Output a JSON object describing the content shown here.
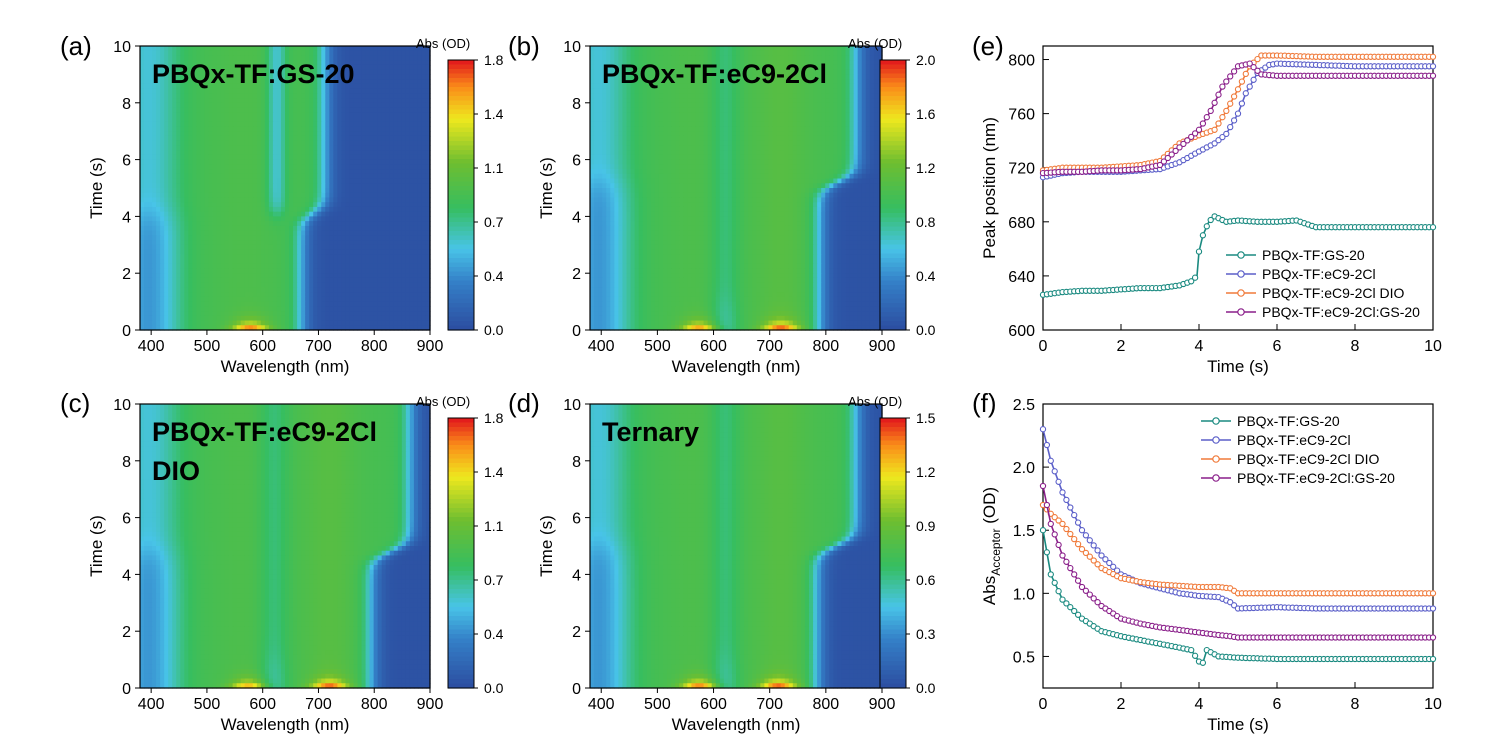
{
  "chart_data": [
    {
      "panel": "(a)",
      "type": "heatmap",
      "title": "PBQx-TF:GS-20",
      "xlabel": "Wavelength (nm)",
      "ylabel": "Time (s)",
      "xlim": [
        380,
        900
      ],
      "ylim": [
        0,
        10
      ],
      "xticks": [
        "400",
        "500",
        "600",
        "700",
        "800",
        "900"
      ],
      "yticks": [
        "0",
        "2",
        "4",
        "6",
        "8",
        "10"
      ],
      "colorbar": {
        "label": "Abs (OD)",
        "ticks": [
          "0.0",
          "0.4",
          "0.7",
          "1.1",
          "1.4",
          "1.8"
        ],
        "max": 1.8
      },
      "transition_time_s": 4.1,
      "edge_nm_before": 670,
      "edge_nm_after": 712,
      "peaks_at_t0": [
        {
          "nm": 578,
          "abs": 1.8
        }
      ]
    },
    {
      "panel": "(b)",
      "type": "heatmap",
      "title": "PBQx-TF:eC9-2Cl",
      "xlabel": "Wavelength (nm)",
      "ylabel": "Time (s)",
      "xlim": [
        380,
        900
      ],
      "ylim": [
        0,
        10
      ],
      "xticks": [
        "400",
        "500",
        "600",
        "700",
        "800",
        "900"
      ],
      "yticks": [
        "0",
        "2",
        "4",
        "6",
        "8",
        "10"
      ],
      "colorbar": {
        "label": "Abs (OD)",
        "ticks": [
          "0.0",
          "0.4",
          "0.8",
          "1.2",
          "1.6",
          "2.0"
        ],
        "max": 2.0
      },
      "transition_time_s": 5.2,
      "edge_nm_before": 790,
      "edge_nm_after": 855,
      "peaks_at_t0": [
        {
          "nm": 575,
          "abs": 1.8
        },
        {
          "nm": 720,
          "abs": 2.0
        }
      ]
    },
    {
      "panel": "(c)",
      "type": "heatmap",
      "title": "PBQx-TF:eC9-2Cl",
      "title_line2": "DIO",
      "xlabel": "Wavelength (nm)",
      "ylabel": "Time (s)",
      "xlim": [
        380,
        900
      ],
      "ylim": [
        0,
        10
      ],
      "xticks": [
        "400",
        "500",
        "600",
        "700",
        "800",
        "900"
      ],
      "yticks": [
        "0",
        "2",
        "4",
        "6",
        "8",
        "10"
      ],
      "colorbar": {
        "label": "Abs (OD)",
        "ticks": [
          "0.0",
          "0.4",
          "0.7",
          "1.1",
          "1.4",
          "1.8"
        ],
        "max": 1.8
      },
      "transition_time_s": 4.8,
      "edge_nm_before": 795,
      "edge_nm_after": 865,
      "peaks_at_t0": [
        {
          "nm": 575,
          "abs": 1.5
        },
        {
          "nm": 720,
          "abs": 1.8
        }
      ]
    },
    {
      "panel": "(d)",
      "type": "heatmap",
      "title": "Ternary",
      "xlabel": "Wavelength (nm)",
      "ylabel": "Time (s)",
      "xlim": [
        380,
        900
      ],
      "ylim": [
        0,
        10
      ],
      "xticks": [
        "400",
        "500",
        "600",
        "700",
        "800",
        "900"
      ],
      "yticks": [
        "0",
        "2",
        "4",
        "6",
        "8",
        "10"
      ],
      "colorbar": {
        "label": "Abs (OD)",
        "ticks": [
          "0.0",
          "0.3",
          "0.6",
          "0.9",
          "1.2",
          "1.5"
        ],
        "max": 1.5
      },
      "transition_time_s": 5.0,
      "edge_nm_before": 785,
      "edge_nm_after": 855,
      "peaks_at_t0": [
        {
          "nm": 575,
          "abs": 1.5
        },
        {
          "nm": 715,
          "abs": 1.5
        }
      ]
    },
    {
      "panel": "(e)",
      "type": "line",
      "xlabel": "Time (s)",
      "ylabel": "Peak position (nm)",
      "xlim": [
        0,
        10
      ],
      "ylim": [
        600,
        810
      ],
      "xticks": [
        0,
        2,
        4,
        6,
        8,
        10
      ],
      "yticks": [
        600,
        640,
        680,
        720,
        760,
        800
      ],
      "legend_position": "lower-right",
      "series": [
        {
          "name": "PBQx-TF:GS-20",
          "color": "#1a8a80",
          "points": [
            [
              0,
              626
            ],
            [
              0.5,
              628
            ],
            [
              1,
              629
            ],
            [
              1.5,
              629
            ],
            [
              2,
              630
            ],
            [
              2.5,
              631
            ],
            [
              3,
              631
            ],
            [
              3.5,
              633
            ],
            [
              3.8,
              636
            ],
            [
              3.95,
              640
            ],
            [
              4.0,
              658
            ],
            [
              4.1,
              670
            ],
            [
              4.25,
              680
            ],
            [
              4.4,
              684
            ],
            [
              4.7,
              680
            ],
            [
              5,
              681
            ],
            [
              5.5,
              680
            ],
            [
              6,
              680
            ],
            [
              6.5,
              681
            ],
            [
              7,
              676
            ],
            [
              8,
              676
            ],
            [
              9,
              676
            ],
            [
              10,
              676
            ]
          ]
        },
        {
          "name": "PBQx-TF:eC9-2Cl",
          "color": "#5b5fc9",
          "points": [
            [
              0,
              713
            ],
            [
              0.5,
              716
            ],
            [
              1,
              717
            ],
            [
              1.5,
              717
            ],
            [
              2,
              717
            ],
            [
              2.5,
              718
            ],
            [
              3,
              719
            ],
            [
              3.5,
              724
            ],
            [
              4,
              732
            ],
            [
              4.4,
              738
            ],
            [
              4.7,
              745
            ],
            [
              5,
              760
            ],
            [
              5.2,
              775
            ],
            [
              5.5,
              790
            ],
            [
              5.8,
              796
            ],
            [
              6,
              797
            ],
            [
              7,
              796
            ],
            [
              8,
              795
            ],
            [
              9,
              795
            ],
            [
              10,
              795
            ]
          ]
        },
        {
          "name": "PBQx-TF:eC9-2Cl DIO",
          "color": "#f07a3a",
          "points": [
            [
              0,
              718
            ],
            [
              0.5,
              720
            ],
            [
              1,
              720
            ],
            [
              1.5,
              720
            ],
            [
              2,
              721
            ],
            [
              2.5,
              722
            ],
            [
              3,
              725
            ],
            [
              3.5,
              738
            ],
            [
              4,
              744
            ],
            [
              4.4,
              748
            ],
            [
              4.7,
              762
            ],
            [
              5,
              778
            ],
            [
              5.3,
              795
            ],
            [
              5.6,
              803
            ],
            [
              6,
              803
            ],
            [
              7,
              802
            ],
            [
              8,
              802
            ],
            [
              9,
              802
            ],
            [
              10,
              802
            ]
          ]
        },
        {
          "name": "PBQx-TF:eC9-2Cl:GS-20",
          "color": "#8a1f8a",
          "points": [
            [
              0,
              716
            ],
            [
              0.5,
              717
            ],
            [
              1,
              717
            ],
            [
              1.5,
              718
            ],
            [
              2,
              718
            ],
            [
              2.5,
              719
            ],
            [
              3,
              722
            ],
            [
              3.5,
              735
            ],
            [
              4,
              748
            ],
            [
              4.3,
              762
            ],
            [
              4.6,
              780
            ],
            [
              5,
              795
            ],
            [
              5.3,
              797
            ],
            [
              5.6,
              789
            ],
            [
              6,
              788
            ],
            [
              7,
              788
            ],
            [
              8,
              788
            ],
            [
              9,
              788
            ],
            [
              10,
              788
            ]
          ]
        }
      ]
    },
    {
      "panel": "(f)",
      "type": "line",
      "xlabel": "Time (s)",
      "ylabel": "Abs",
      "ylabel_subscript": "Acceptor",
      "ylabel_unit": " (OD)",
      "xlim": [
        0,
        10
      ],
      "ylim": [
        0.25,
        2.5
      ],
      "xticks": [
        0,
        2,
        4,
        6,
        8,
        10
      ],
      "yticks": [
        "0.5",
        "1.0",
        "1.5",
        "2.0",
        "2.5"
      ],
      "legend_position": "top-right",
      "series": [
        {
          "name": "PBQx-TF:GS-20",
          "color": "#1a8a80",
          "points": [
            [
              0,
              1.5
            ],
            [
              0.2,
              1.15
            ],
            [
              0.5,
              0.95
            ],
            [
              1,
              0.8
            ],
            [
              1.5,
              0.7
            ],
            [
              2,
              0.66
            ],
            [
              2.5,
              0.63
            ],
            [
              3,
              0.6
            ],
            [
              3.5,
              0.57
            ],
            [
              3.8,
              0.55
            ],
            [
              4.0,
              0.46
            ],
            [
              4.1,
              0.45
            ],
            [
              4.2,
              0.55
            ],
            [
              4.5,
              0.5
            ],
            [
              5,
              0.49
            ],
            [
              6,
              0.48
            ],
            [
              7,
              0.48
            ],
            [
              8,
              0.48
            ],
            [
              9,
              0.48
            ],
            [
              10,
              0.48
            ]
          ]
        },
        {
          "name": "PBQx-TF:eC9-2Cl",
          "color": "#5b5fc9",
          "points": [
            [
              0,
              2.3
            ],
            [
              0.2,
              2.05
            ],
            [
              0.5,
              1.8
            ],
            [
              1,
              1.5
            ],
            [
              1.5,
              1.3
            ],
            [
              2,
              1.15
            ],
            [
              2.5,
              1.08
            ],
            [
              3,
              1.04
            ],
            [
              3.5,
              1.0
            ],
            [
              4,
              0.98
            ],
            [
              4.5,
              0.97
            ],
            [
              4.8,
              0.93
            ],
            [
              5,
              0.88
            ],
            [
              6,
              0.89
            ],
            [
              7,
              0.88
            ],
            [
              8,
              0.88
            ],
            [
              9,
              0.88
            ],
            [
              10,
              0.88
            ]
          ]
        },
        {
          "name": "PBQx-TF:eC9-2Cl DIO",
          "color": "#f07a3a",
          "points": [
            [
              0,
              1.7
            ],
            [
              0.2,
              1.63
            ],
            [
              0.5,
              1.55
            ],
            [
              1,
              1.35
            ],
            [
              1.5,
              1.2
            ],
            [
              2,
              1.12
            ],
            [
              2.5,
              1.09
            ],
            [
              3,
              1.07
            ],
            [
              3.5,
              1.06
            ],
            [
              4,
              1.05
            ],
            [
              4.5,
              1.05
            ],
            [
              4.8,
              1.04
            ],
            [
              5,
              1.0
            ],
            [
              6,
              1.0
            ],
            [
              7,
              1.0
            ],
            [
              8,
              1.0
            ],
            [
              9,
              1.0
            ],
            [
              10,
              1.0
            ]
          ]
        },
        {
          "name": "PBQx-TF:eC9-2Cl:GS-20",
          "color": "#8a1f8a",
          "points": [
            [
              0,
              1.85
            ],
            [
              0.2,
              1.55
            ],
            [
              0.5,
              1.3
            ],
            [
              1,
              1.05
            ],
            [
              1.5,
              0.9
            ],
            [
              2,
              0.8
            ],
            [
              2.5,
              0.76
            ],
            [
              3,
              0.73
            ],
            [
              3.5,
              0.71
            ],
            [
              4,
              0.69
            ],
            [
              4.5,
              0.67
            ],
            [
              4.8,
              0.66
            ],
            [
              5,
              0.65
            ],
            [
              6,
              0.65
            ],
            [
              7,
              0.65
            ],
            [
              8,
              0.65
            ],
            [
              9,
              0.65
            ],
            [
              10,
              0.65
            ]
          ]
        }
      ]
    }
  ],
  "panel_labels": {
    "a": "(a)",
    "b": "(b)",
    "c": "(c)",
    "d": "(d)",
    "e": "(e)",
    "f": "(f)"
  }
}
